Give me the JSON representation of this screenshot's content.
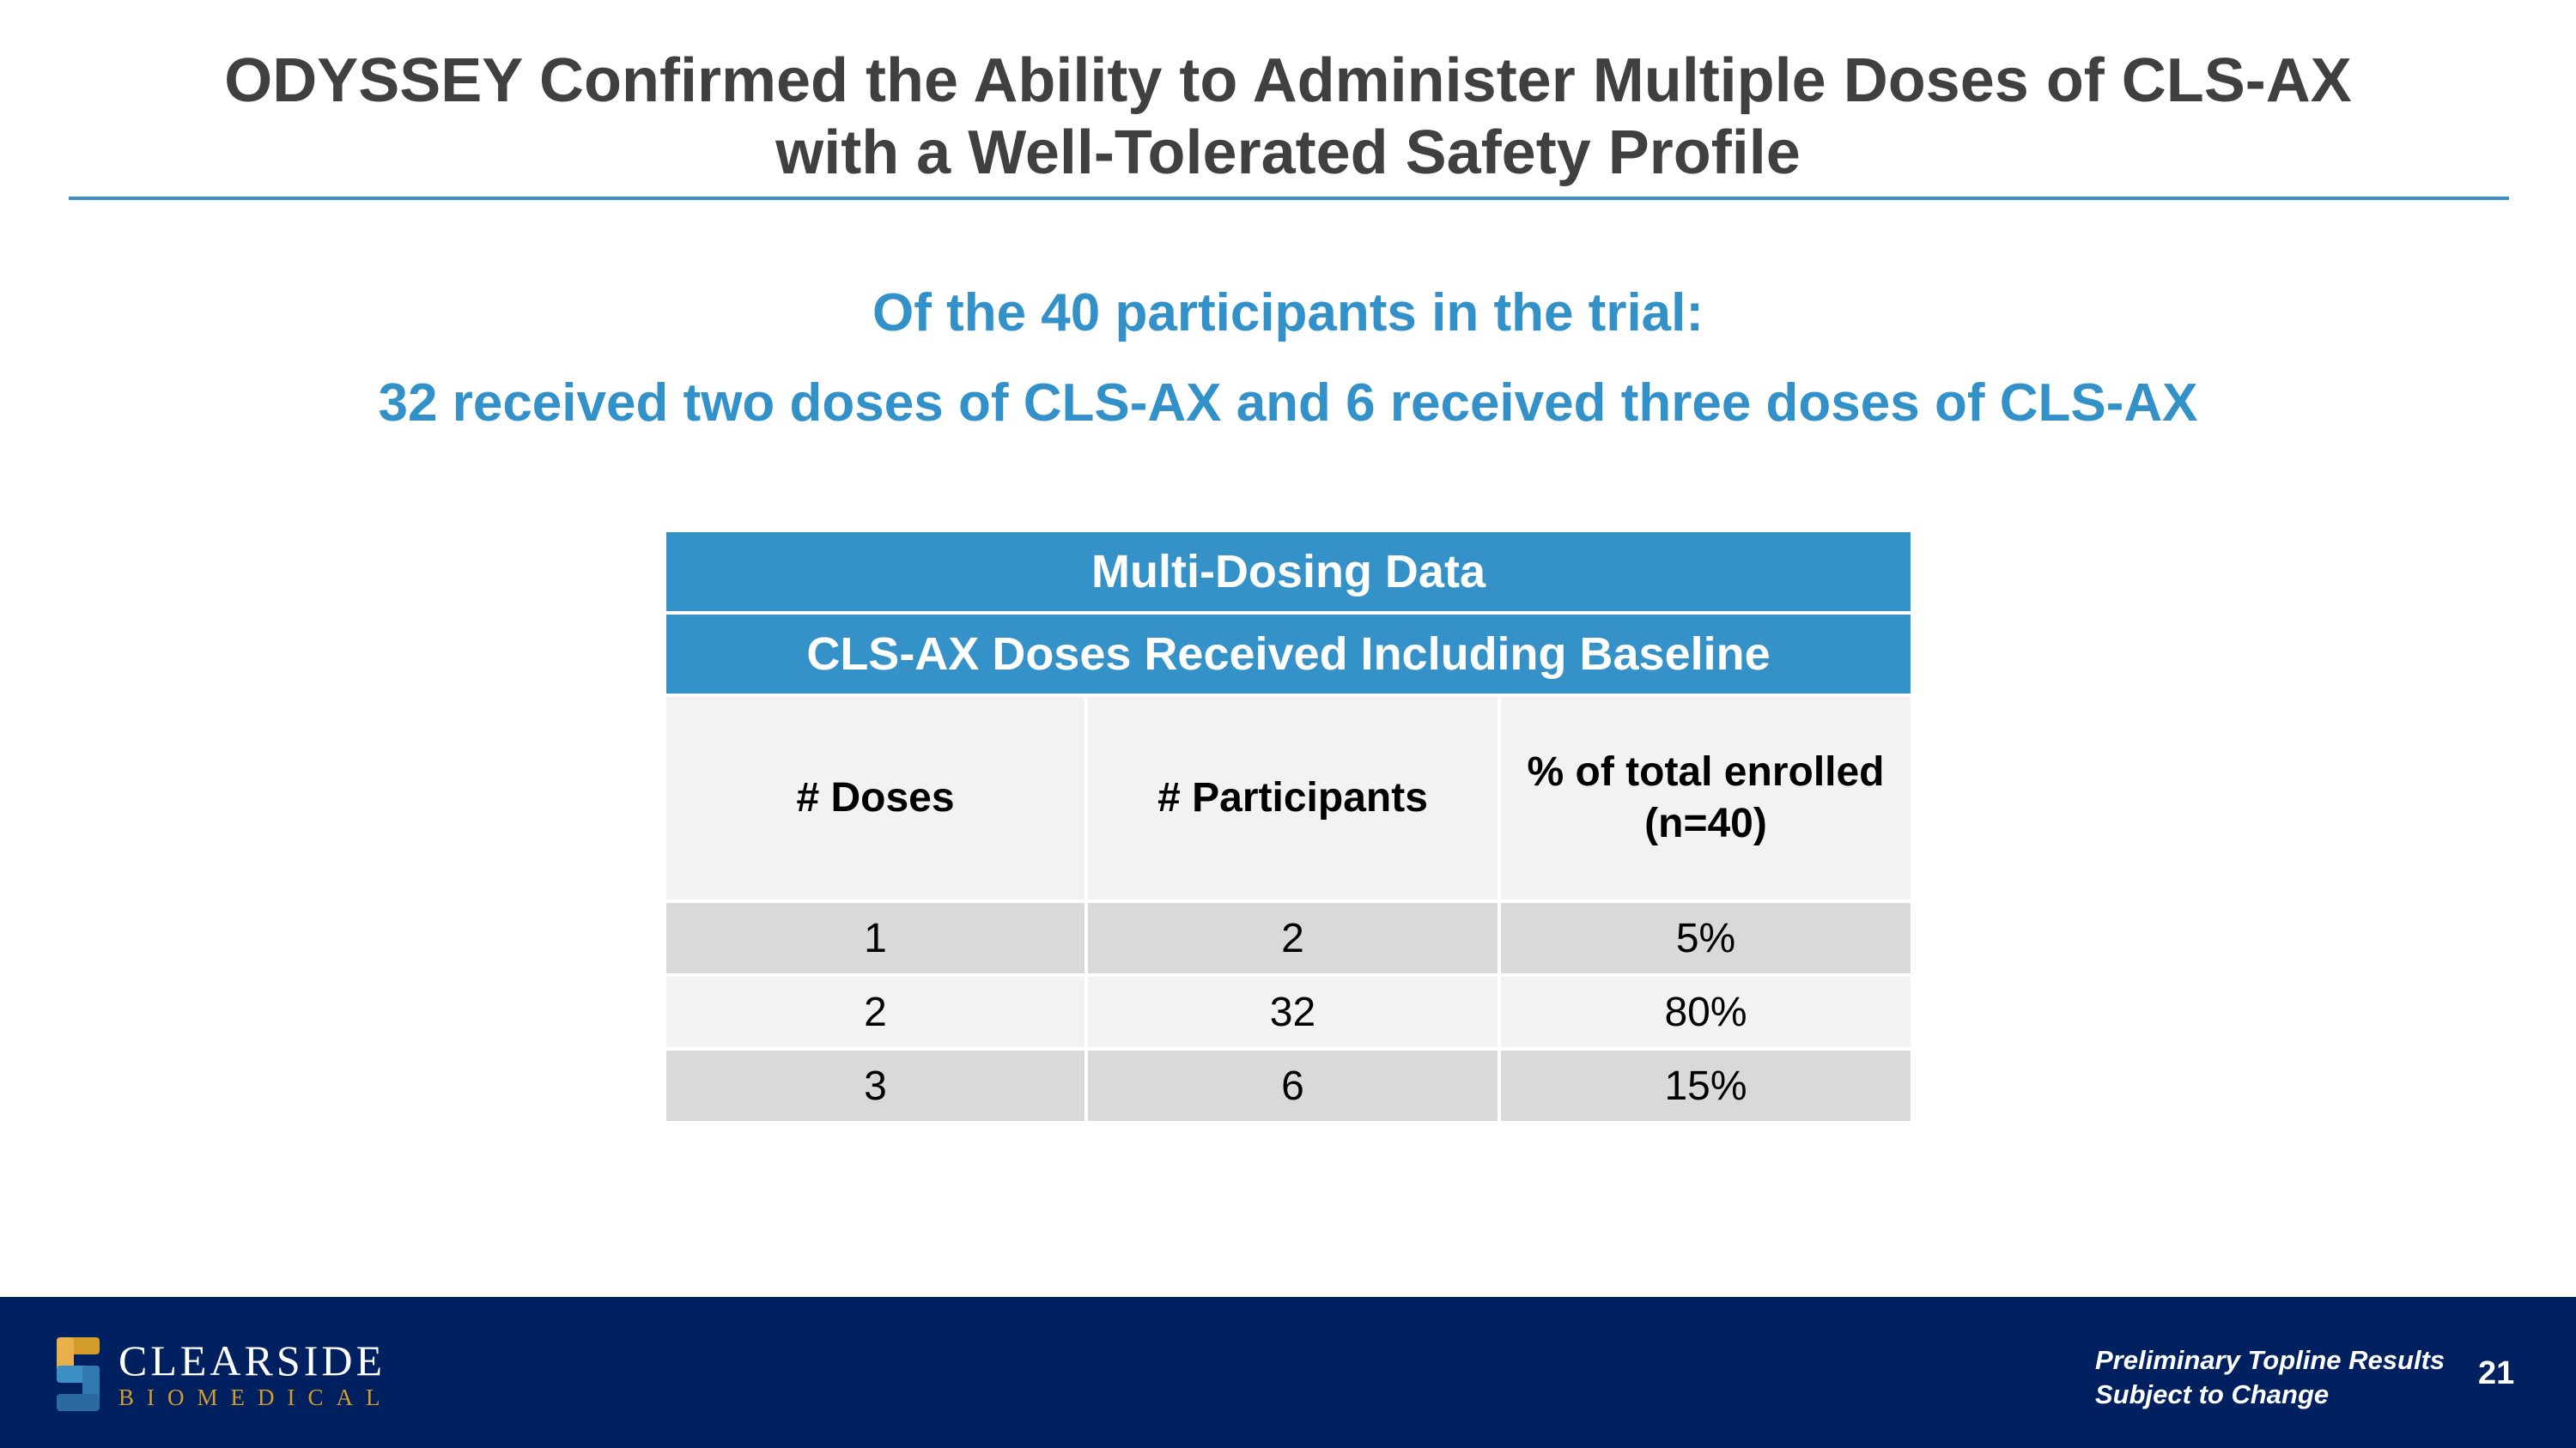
{
  "slide": {
    "title_line1": "ODYSSEY Confirmed the Ability to Administer Multiple Doses of CLS-AX",
    "title_line2": "with a Well-Tolerated Safety Profile",
    "subtitle_line1": "Of the 40 participants in the trial:",
    "subtitle_line2": "32 received two doses of CLS-AX and 6 received three doses of CLS-AX"
  },
  "table": {
    "title": "Multi-Dosing Data",
    "subtitle": "CLS-AX Doses Received Including Baseline",
    "headers": [
      "# Doses",
      "# Participants",
      "% of total enrolled (n=40)"
    ],
    "rows": [
      [
        "1",
        "2",
        "5%"
      ],
      [
        "2",
        "32",
        "80%"
      ],
      [
        "3",
        "6",
        "15%"
      ]
    ]
  },
  "footer": {
    "logo_name": "CLEARSIDE",
    "logo_sub": "BIOMEDICAL",
    "disclaimer_line1": "Preliminary Topline Results",
    "disclaimer_line2": "Subject to Change",
    "page_number": "21"
  },
  "colors": {
    "accent_blue": "#3592c8",
    "footer_navy": "#012060",
    "logo_gold": "#d39c2b"
  }
}
